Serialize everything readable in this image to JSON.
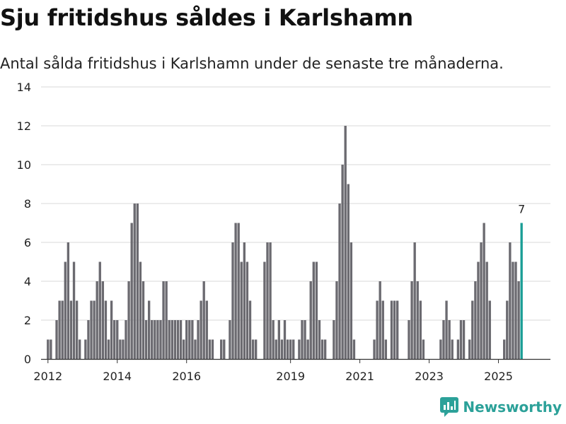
{
  "title": "Sju fritidshus såldes i Karlshamn",
  "subtitle": "Antal sålda fritidshus i Karlshamn under de senaste tre månaderna.",
  "brand": "Newsworthy",
  "colors": {
    "bar": "#6b6a70",
    "highlight": "#1a9e96",
    "grid": "#d9d9d9",
    "brand": "#2ca199"
  },
  "chart_data": {
    "type": "bar",
    "ylim": [
      0,
      14
    ],
    "yticks": [
      0,
      2,
      4,
      6,
      8,
      10,
      12,
      14
    ],
    "xticks": [
      {
        "label": "2012",
        "t": 2012.0
      },
      {
        "label": "2014",
        "t": 2014.0
      },
      {
        "label": "2016",
        "t": 2016.0
      },
      {
        "label": "2019",
        "t": 2019.0
      },
      {
        "label": "2021",
        "t": 2021.0
      },
      {
        "label": "2023",
        "t": 2023.0
      },
      {
        "label": "2025",
        "t": 2025.0
      }
    ],
    "grid": true,
    "start": "2012-01",
    "frequency": "monthly",
    "highlight_label": "7",
    "values": [
      1,
      1,
      0,
      2,
      3,
      3,
      5,
      6,
      3,
      5,
      3,
      1,
      0,
      1,
      2,
      3,
      3,
      4,
      5,
      4,
      3,
      1,
      3,
      2,
      2,
      1,
      1,
      2,
      4,
      7,
      8,
      8,
      5,
      4,
      2,
      3,
      2,
      2,
      2,
      2,
      4,
      4,
      2,
      2,
      2,
      2,
      2,
      1,
      2,
      2,
      2,
      1,
      2,
      3,
      4,
      3,
      1,
      1,
      0,
      0,
      1,
      1,
      0,
      2,
      6,
      7,
      7,
      5,
      6,
      5,
      3,
      1,
      1,
      0,
      0,
      5,
      6,
      6,
      2,
      1,
      2,
      1,
      2,
      1,
      1,
      1,
      0,
      1,
      2,
      2,
      1,
      4,
      5,
      5,
      2,
      1,
      1,
      0,
      0,
      2,
      4,
      8,
      10,
      12,
      9,
      6,
      1,
      0,
      0,
      0,
      0,
      0,
      0,
      1,
      3,
      4,
      3,
      1,
      0,
      3,
      3,
      3,
      0,
      0,
      0,
      2,
      4,
      6,
      4,
      3,
      1,
      0,
      0,
      0,
      0,
      0,
      1,
      2,
      3,
      2,
      1,
      0,
      1,
      2,
      2,
      0,
      1,
      3,
      4,
      5,
      6,
      7,
      5,
      3,
      0,
      0,
      0,
      0,
      1,
      3,
      6,
      5,
      5,
      4,
      7
    ]
  }
}
